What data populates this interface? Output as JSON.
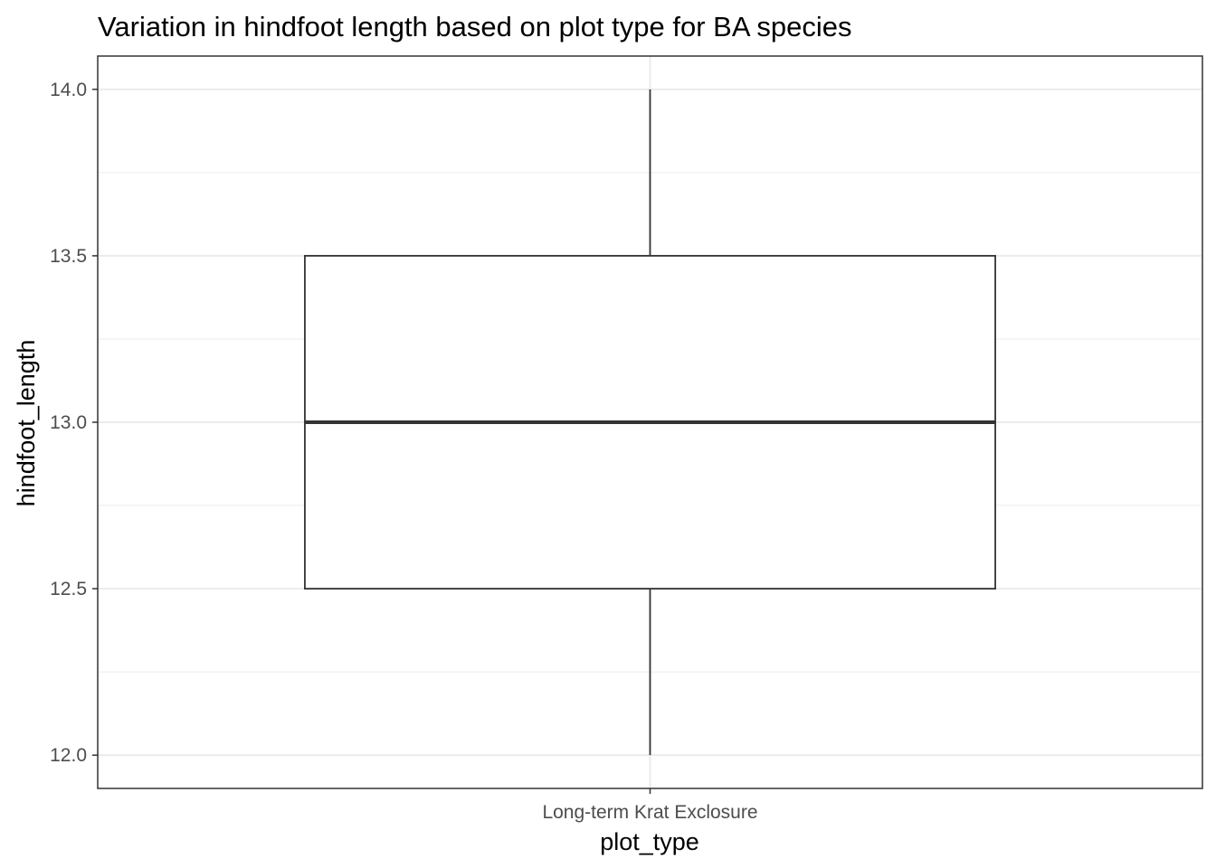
{
  "chart_data": {
    "type": "box",
    "title": "Variation in hindfoot length based on plot type for BA species",
    "xlabel": "plot_type",
    "ylabel": "hindfoot_length",
    "categories": [
      "Long-term Krat Exclosure"
    ],
    "boxes": [
      {
        "category": "Long-term Krat Exclosure",
        "min": 12.0,
        "q1": 12.5,
        "median": 13.0,
        "q3": 13.5,
        "max": 14.0
      }
    ],
    "ylim": [
      11.9,
      14.1
    ],
    "yticks": [
      12.0,
      12.5,
      13.0,
      13.5,
      14.0
    ],
    "ytick_labels": [
      "12.0",
      "12.5",
      "13.0",
      "13.5",
      "14.0"
    ],
    "grid": true,
    "theme": "bw",
    "colors": {
      "grid": "#ebebeb",
      "box_line": "#333333",
      "panel_border": "#333333",
      "tick_text": "#4d4d4d"
    }
  }
}
